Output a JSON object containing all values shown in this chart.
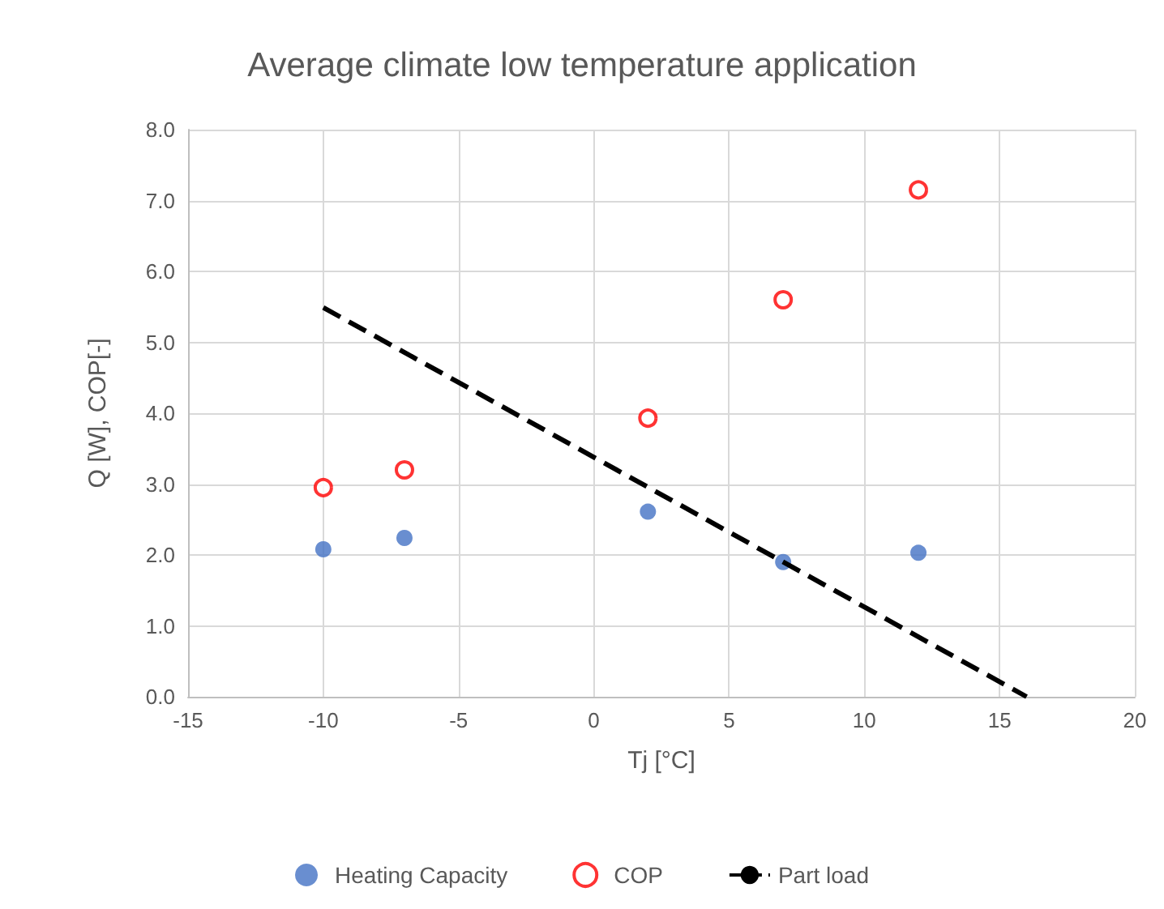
{
  "chart_data": {
    "type": "scatter",
    "title": "Average climate low temperature application",
    "xlabel": "Tj [°C]",
    "ylabel": "Q [W], COP[-]",
    "xlim": [
      -15,
      20
    ],
    "xticks": [
      -15,
      -10,
      -5,
      0,
      5,
      10,
      15,
      20
    ],
    "ylim": [
      0,
      8
    ],
    "yticks": [
      {
        "value": 0,
        "label": "0.0"
      },
      {
        "value": 1,
        "label": "1.0"
      },
      {
        "value": 2,
        "label": "2.0"
      },
      {
        "value": 3,
        "label": "3.0"
      },
      {
        "value": 4,
        "label": "4.0"
      },
      {
        "value": 5,
        "label": "5.0"
      },
      {
        "value": 6,
        "label": "6.0"
      },
      {
        "value": 7,
        "label": "7.0"
      },
      {
        "value": 8,
        "label": "8.0"
      }
    ],
    "grid": true,
    "legend": "bottom",
    "series": [
      {
        "name": "Heating Capacity",
        "color": "#4472c4",
        "marker": "circle",
        "x": [
          -10,
          -7,
          2,
          7,
          12
        ],
        "values": [
          2.08,
          2.24,
          2.61,
          1.9,
          2.03
        ]
      },
      {
        "name": "COP",
        "color": "#ff0000",
        "marker": "circle-open",
        "x": [
          -10,
          -7,
          2,
          7,
          12
        ],
        "values": [
          2.95,
          3.2,
          3.93,
          5.6,
          7.15
        ]
      },
      {
        "name": "Part load",
        "type": "line",
        "color": "#000000",
        "marker": "none",
        "line_style": "dashed",
        "x": [
          -10,
          16
        ],
        "values": [
          5.49,
          0
        ]
      }
    ]
  }
}
